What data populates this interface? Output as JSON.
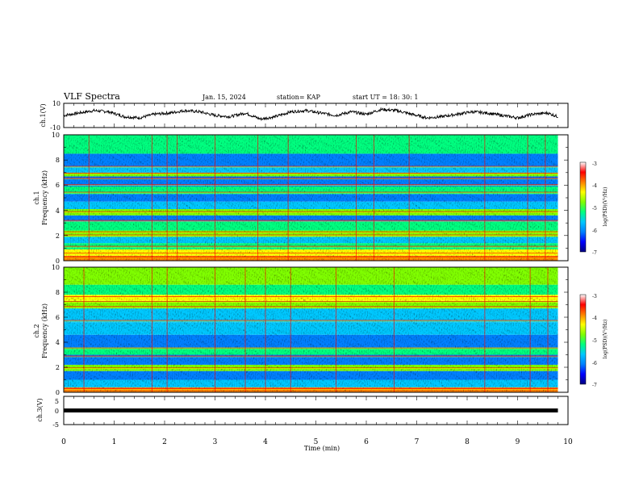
{
  "header": {
    "title": "VLF Spectra",
    "date": "Jan. 15, 2024",
    "station": "station= KAP",
    "start": "start  UT =   18: 30: 1"
  },
  "colors": {
    "colormap": [
      "#000080",
      "#0000ff",
      "#0080ff",
      "#00c8ff",
      "#00ff80",
      "#80ff00",
      "#ffff00",
      "#ff8000",
      "#ff0000",
      "#ffffff"
    ],
    "trace": "#000000"
  },
  "chart_data": [
    {
      "type": "line",
      "panel": "ch1-waveform",
      "ylabel": "ch.1(V)",
      "ylim": [
        -10,
        10
      ],
      "yticks": [
        "10",
        "-10"
      ],
      "x_range_min": [
        0,
        9.8
      ],
      "series": [
        {
          "anchors_min": [
            0,
            0.3,
            0.6,
            0.9,
            1.2,
            1.5,
            1.8,
            2.1,
            2.4,
            2.7,
            3.0,
            3.3,
            3.6,
            3.9,
            4.2,
            4.5,
            4.8,
            5.1,
            5.4,
            5.7,
            6.0,
            6.3,
            6.6,
            6.9,
            7.2,
            7.5,
            7.8,
            8.1,
            8.4,
            8.7,
            9.0,
            9.3,
            9.6,
            9.8
          ],
          "values": [
            0,
            2,
            4,
            3,
            -1,
            -2,
            1,
            2,
            4,
            3,
            0,
            -1,
            2,
            -3,
            -1,
            3,
            4,
            2,
            0,
            3,
            1,
            5,
            4,
            1,
            -2,
            -1,
            1,
            3,
            2,
            0,
            -2,
            1,
            2,
            -1
          ]
        }
      ]
    },
    {
      "type": "heatmap",
      "panel": "ch1-spectrogram",
      "ylabel_top": "ch.1",
      "ylabel": "Frequency (kHz)",
      "ylim": [
        0,
        10
      ],
      "yticks": [
        "0",
        "2",
        "4",
        "6",
        "8",
        "10"
      ],
      "x_range_min": [
        0,
        9.8
      ],
      "colorbar": {
        "label": "log(PSD)(V²/Hz)",
        "range": [
          -7,
          -3
        ],
        "ticks": [
          "-3",
          "-4",
          "-5",
          "-6",
          "-7"
        ]
      },
      "bands_khz": [
        {
          "f": [
            0.0,
            0.4
          ],
          "level": -3.8
        },
        {
          "f": [
            0.4,
            0.9
          ],
          "level": -4.4
        },
        {
          "f": [
            0.9,
            1.4
          ],
          "level": -5.3
        },
        {
          "f": [
            1.4,
            1.9
          ],
          "level": -5.7
        },
        {
          "f": [
            1.9,
            2.4
          ],
          "level": -4.8
        },
        {
          "f": [
            2.4,
            3.1
          ],
          "level": -5.3
        },
        {
          "f": [
            3.1,
            3.6
          ],
          "level": -5.9
        },
        {
          "f": [
            3.6,
            4.1
          ],
          "level": -5.0
        },
        {
          "f": [
            4.1,
            4.7
          ],
          "level": -5.6
        },
        {
          "f": [
            4.7,
            5.3
          ],
          "level": -6.1
        },
        {
          "f": [
            5.3,
            5.9
          ],
          "level": -5.2
        },
        {
          "f": [
            5.9,
            6.7
          ],
          "level": -5.9
        },
        {
          "f": [
            6.7,
            7.0
          ],
          "level": -4.7
        },
        {
          "f": [
            7.0,
            7.5
          ],
          "level": -5.5
        },
        {
          "f": [
            7.5,
            8.5
          ],
          "level": -6.2
        },
        {
          "f": [
            8.5,
            10.0
          ],
          "level": -5.1
        }
      ],
      "lines_khz": [
        0.3,
        0.6,
        1.15,
        2.05,
        2.3,
        3.2,
        3.9,
        5.45,
        6.05,
        6.55,
        6.95,
        7.5
      ],
      "spikes_min": [
        0.5,
        1.75,
        2.05,
        2.25,
        3.0,
        3.85,
        4.45,
        5.8,
        6.15,
        6.85,
        8.35,
        9.2,
        9.55
      ]
    },
    {
      "type": "heatmap",
      "panel": "ch2-spectrogram",
      "ylabel_top": "ch.2",
      "ylabel": "Frequency (kHz)",
      "ylim": [
        0,
        10
      ],
      "yticks": [
        "0",
        "2",
        "4",
        "6",
        "8",
        "10"
      ],
      "x_range_min": [
        0,
        9.8
      ],
      "colorbar": {
        "label": "log(PSD)(V²/Hz)",
        "range": [
          -7,
          -3
        ],
        "ticks": [
          "-3",
          "-4",
          "-5",
          "-6",
          "-7"
        ]
      },
      "bands_khz": [
        {
          "f": [
            0.0,
            0.4
          ],
          "level": -3.9
        },
        {
          "f": [
            0.4,
            1.0
          ],
          "level": -5.6
        },
        {
          "f": [
            1.0,
            1.7
          ],
          "level": -6.1
        },
        {
          "f": [
            1.7,
            2.2
          ],
          "level": -5.0
        },
        {
          "f": [
            2.2,
            3.0
          ],
          "level": -6.3
        },
        {
          "f": [
            3.0,
            3.6
          ],
          "level": -5.4
        },
        {
          "f": [
            3.6,
            4.6
          ],
          "level": -6.0
        },
        {
          "f": [
            4.6,
            5.6
          ],
          "level": -5.5
        },
        {
          "f": [
            5.6,
            6.7
          ],
          "level": -5.8
        },
        {
          "f": [
            6.7,
            7.3
          ],
          "level": -4.8
        },
        {
          "f": [
            7.3,
            7.8
          ],
          "level": -4.5
        },
        {
          "f": [
            7.8,
            8.6
          ],
          "level": -5.3
        },
        {
          "f": [
            8.6,
            10.0
          ],
          "level": -5.0
        }
      ],
      "lines_khz": [
        0.3,
        1.95,
        2.9,
        3.55,
        5.75,
        6.85,
        7.25,
        7.65
      ],
      "spikes_min": [
        0.4,
        1.75,
        2.05,
        3.0,
        3.6,
        4.0,
        4.5,
        5.4,
        6.55,
        8.35,
        9.25,
        9.6
      ]
    },
    {
      "type": "line",
      "panel": "ch3-waveform",
      "ylabel": "ch.3(V)",
      "ylim": [
        -5,
        5
      ],
      "yticks": [
        "5",
        "0",
        "-5"
      ],
      "xlabel": "Time  (min)",
      "xlim": [
        0,
        10
      ],
      "xticks": [
        "0",
        "1",
        "2",
        "3",
        "4",
        "5",
        "6",
        "7",
        "8",
        "9",
        "10"
      ],
      "x_range_min": [
        0,
        9.8
      ],
      "series": [
        {
          "level": 0,
          "band_halfwidth": 0.7
        }
      ]
    }
  ]
}
